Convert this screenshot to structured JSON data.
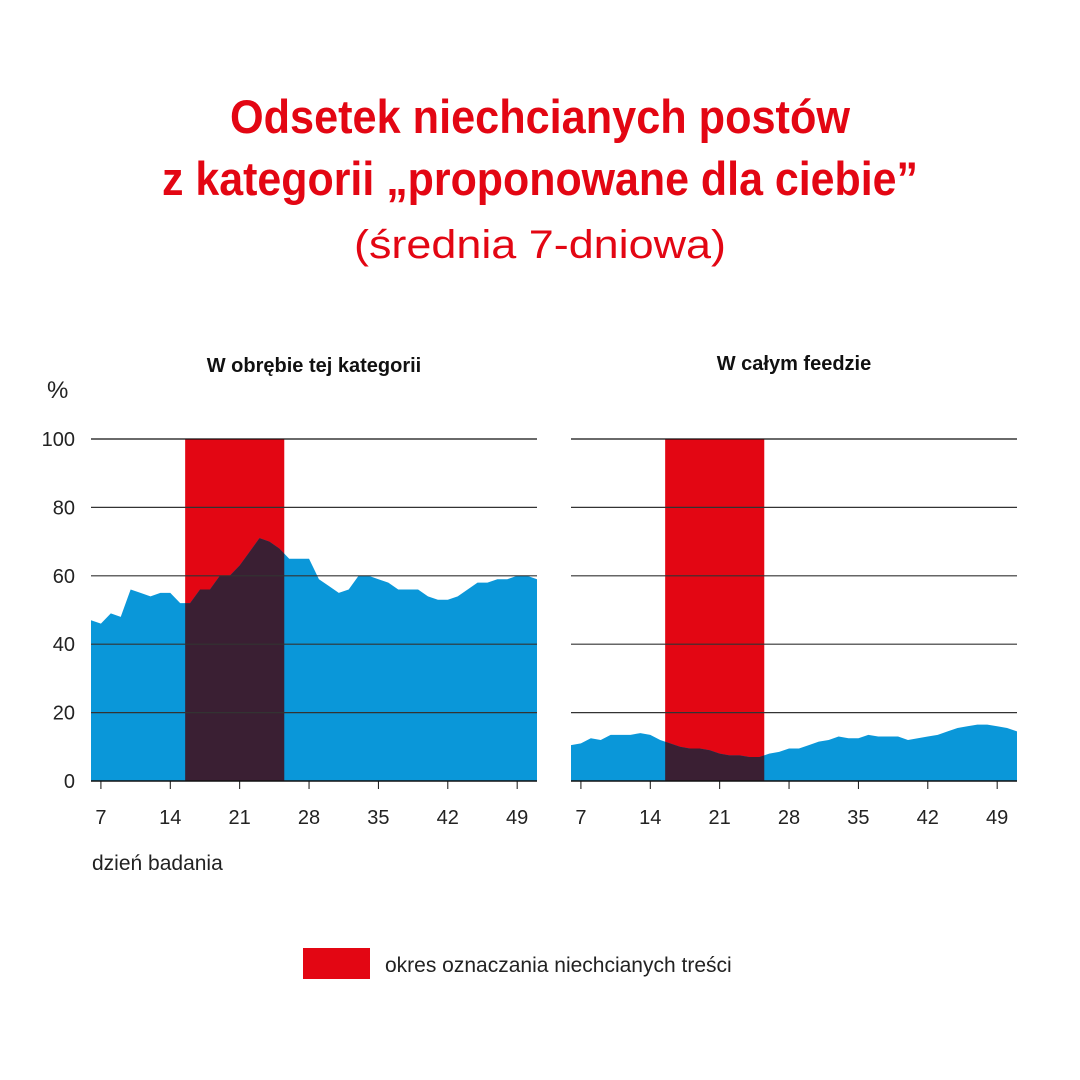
{
  "title_line1": "Odsetek niechcianych postów",
  "title_line2": "z kategorii „proponowane dla ciebie”",
  "subtitle": "(średnia 7-dniowa)",
  "colors": {
    "title": "#e30613",
    "band": "#e30613",
    "area": "#0a97d9",
    "overlap": "#3a1f33",
    "grid": "#111111"
  },
  "chart_data": [
    {
      "type": "area",
      "title": "W obrębie tej kategorii",
      "ylabel": "%",
      "xlabel": "dzień badania",
      "xlim": [
        6,
        51
      ],
      "ylim": [
        0,
        100
      ],
      "yticks": [
        0,
        20,
        40,
        60,
        80,
        100
      ],
      "xticks": [
        7,
        14,
        21,
        28,
        35,
        42,
        49
      ],
      "grid": "horizontal",
      "highlight_band": {
        "from": 15.5,
        "to": 25.5,
        "label": "okres oznaczania niechcianych treści"
      },
      "x": [
        6,
        7,
        8,
        9,
        10,
        11,
        12,
        13,
        14,
        15,
        16,
        17,
        18,
        19,
        20,
        21,
        22,
        23,
        24,
        25,
        26,
        27,
        28,
        29,
        30,
        31,
        32,
        33,
        34,
        35,
        36,
        37,
        38,
        39,
        40,
        41,
        42,
        43,
        44,
        45,
        46,
        47,
        48,
        49,
        50,
        51
      ],
      "values": [
        47,
        46,
        49,
        48,
        56,
        55,
        54,
        55,
        55,
        52,
        52,
        56,
        56,
        60,
        60,
        63,
        67,
        71,
        70,
        68,
        65,
        65,
        65,
        59,
        57,
        55,
        56,
        60,
        60,
        59,
        58,
        56,
        56,
        56,
        54,
        53,
        53,
        54,
        56,
        58,
        58,
        59,
        59,
        60,
        60,
        59
      ]
    },
    {
      "type": "area",
      "title": "W całym feedzie",
      "xlim": [
        6,
        51
      ],
      "ylim": [
        0,
        100
      ],
      "yticks": [
        0,
        20,
        40,
        60,
        80,
        100
      ],
      "xticks": [
        7,
        14,
        21,
        28,
        35,
        42,
        49
      ],
      "grid": "horizontal",
      "highlight_band": {
        "from": 15.5,
        "to": 25.5,
        "label": "okres oznaczania niechcianych treści"
      },
      "x": [
        6,
        7,
        8,
        9,
        10,
        11,
        12,
        13,
        14,
        15,
        16,
        17,
        18,
        19,
        20,
        21,
        22,
        23,
        24,
        25,
        26,
        27,
        28,
        29,
        30,
        31,
        32,
        33,
        34,
        35,
        36,
        37,
        38,
        39,
        40,
        41,
        42,
        43,
        44,
        45,
        46,
        47,
        48,
        49,
        50,
        51
      ],
      "values": [
        10.5,
        11,
        12.5,
        12,
        13.5,
        13.5,
        13.5,
        14,
        13.5,
        12,
        11,
        10,
        9.5,
        9.5,
        9,
        8,
        7.5,
        7.5,
        7,
        7,
        8,
        8.5,
        9.5,
        9.5,
        10.5,
        11.5,
        12,
        13,
        12.5,
        12.5,
        13.5,
        13,
        13,
        13,
        12,
        12.5,
        13,
        13.5,
        14.5,
        15.5,
        16,
        16.5,
        16.5,
        16,
        15.5,
        14.5
      ]
    }
  ],
  "legend": {
    "label": "okres oznaczania niechcianych treści"
  }
}
